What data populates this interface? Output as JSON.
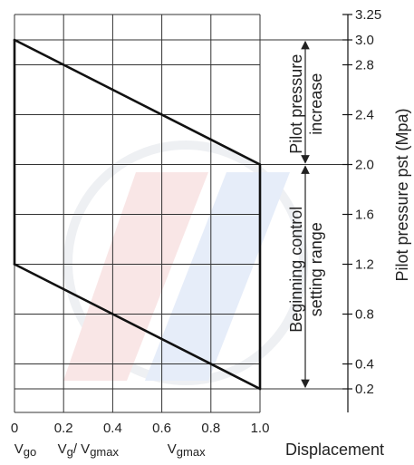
{
  "chart_data": {
    "type": "line",
    "xlabel": "Displacement",
    "ylabel": "Pilot pressure pst (Mpa)",
    "xlim": [
      0,
      1.0
    ],
    "ylim": [
      0,
      3.25
    ],
    "x_ticks": [
      "0",
      "0.2",
      "0.4",
      "0.6",
      "0.8",
      "1.0"
    ],
    "x_tick_values": [
      0,
      0.2,
      0.4,
      0.6,
      0.8,
      1.0
    ],
    "x_sublabels": [
      {
        "x": 0,
        "text": "Vgo"
      },
      {
        "x": 0.3,
        "text": "Vg/ Vgmax"
      },
      {
        "x": 0.7,
        "text": "Vgmax"
      }
    ],
    "y_ticks": [
      "3.25",
      "3.0",
      "2.8",
      "2.4",
      "2.0",
      "1.6",
      "1.2",
      "0.8",
      "0.4",
      "0.2"
    ],
    "y_tick_values": [
      3.25,
      3.0,
      2.8,
      2.4,
      2.0,
      1.6,
      1.2,
      0.8,
      0.4,
      0.2
    ],
    "grid": true,
    "series": [
      {
        "values": [
          {
            "x": 0,
            "y": 3.0
          },
          {
            "x": 1.0,
            "y": 2.0
          }
        ]
      },
      {
        "values": [
          {
            "x": 0,
            "y": 1.2
          },
          {
            "x": 1.0,
            "y": 0.2
          }
        ]
      },
      {
        "values": [
          {
            "x": 0,
            "y": 3.0
          },
          {
            "x": 0,
            "y": 1.2
          }
        ]
      },
      {
        "values": [
          {
            "x": 1.0,
            "y": 2.0
          },
          {
            "x": 1.0,
            "y": 0.2
          }
        ]
      }
    ],
    "annotations": [
      {
        "text": "Pilot pressure\nincrease",
        "range": [
          2.0,
          3.0
        ]
      },
      {
        "text": "Beginning control\nsetting range",
        "range": [
          0.2,
          2.0
        ]
      }
    ],
    "colors": {
      "line": "#111111",
      "grid": "#333333",
      "annotation": "#222222"
    }
  }
}
